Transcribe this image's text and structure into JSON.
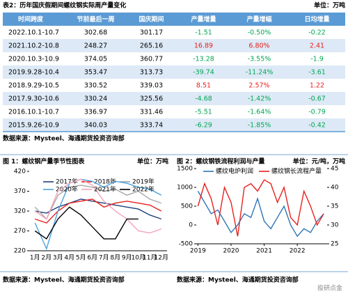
{
  "table": {
    "title": "表2：历年国庆假期间螺纹钢实际周产量变化",
    "unit": "单位：万吨",
    "header": [
      "时间跨度",
      "节前最后一周",
      "国庆期间",
      "产量增量",
      "产量增幅",
      "日均增量"
    ],
    "rows": [
      [
        "2022.10.1-10.7",
        "302.68",
        "301.17",
        "-1.51",
        "-0.50%",
        "-0.22"
      ],
      [
        "2021.10.2-10.8",
        "248.27",
        "265.16",
        "16.89",
        "6.80%",
        "2.41"
      ],
      [
        "2020.10.3-10.9",
        "374.05",
        "360.77",
        "-13.28",
        "-3.55%",
        "-1.9"
      ],
      [
        "2019.9.28-10.4",
        "353.47",
        "313.73",
        "-39.74",
        "-11.24%",
        "-3.61"
      ],
      [
        "2018.9.29-10.5",
        "330.52",
        "339.03",
        "8.51",
        "2.57%",
        "1.22"
      ],
      [
        "2017.9.30-10.6",
        "330.24",
        "325.56",
        "-4.68",
        "-1.42%",
        "-0.67"
      ],
      [
        "2016.10.1-10.7",
        "336.97",
        "331.46",
        "-5.51",
        "-1.64%",
        "-0.79"
      ],
      [
        "2015.9.26-10.9",
        "340.03",
        "333.74",
        "-6.29",
        "-1.85%",
        "-0.42"
      ]
    ],
    "source": "数据来源：Mysteel、海通期货投资咨询部"
  },
  "figure1": {
    "type": "line",
    "title": "图 1：螺纹钢产量季节性图表",
    "unit": "单位：万吨",
    "categories": [
      "1月",
      "2月",
      "3月",
      "4月",
      "5月",
      "6月",
      "7月",
      "8月",
      "9月",
      "10月",
      "11月",
      "12月"
    ],
    "ylim": [
      220,
      420
    ],
    "yticks": [
      220,
      270,
      320,
      370,
      420
    ],
    "series": [
      {
        "name": "2017年",
        "color": "#1f3f7a",
        "values": [
          320,
          315,
          330,
          340,
          350,
          345,
          340,
          335,
          330,
          325,
          310,
          300
        ]
      },
      {
        "name": "2018年",
        "color": "#e8201c",
        "values": [
          300,
          290,
          320,
          340,
          345,
          350,
          330,
          340,
          345,
          340,
          335,
          320
        ]
      },
      {
        "name": "2019年",
        "color": "#a6a6a6",
        "values": [
          330,
          300,
          360,
          380,
          385,
          380,
          370,
          375,
          360,
          370,
          350,
          340
        ]
      },
      {
        "name": "2020年",
        "color": "#4aa3df",
        "values": [
          290,
          225,
          320,
          390,
          400,
          395,
          380,
          395,
          390,
          380,
          375,
          360
        ]
      },
      {
        "name": "2021年",
        "color": "#f4a3b8",
        "values": [
          320,
          300,
          370,
          390,
          400,
          385,
          345,
          320,
          300,
          270,
          265,
          275
        ]
      },
      {
        "name": "2022年",
        "color": "#000000",
        "values": [
          270,
          250,
          300,
          330,
          310,
          280,
          250,
          250,
          300,
          300,
          null,
          null
        ]
      }
    ],
    "source": "数据来源：Mysteel、海通期货投资咨询部"
  },
  "figure2": {
    "type": "line",
    "title": "图 2：螺纹钢铁流程利润与产量",
    "unit": "单位：元/吨，万吨",
    "x": [
      2019.0,
      2019.2,
      2019.4,
      2019.6,
      2019.8,
      2020.0,
      2020.2,
      2020.4,
      2020.6,
      2020.8,
      2021.0,
      2021.2,
      2021.4,
      2021.6,
      2021.8,
      2022.0,
      2022.2,
      2022.4,
      2022.6,
      2022.8
    ],
    "xlim": [
      2018.95,
      2022.9
    ],
    "xticks": [
      2019,
      2020,
      2021,
      2022
    ],
    "ylim": [
      -500,
      1500
    ],
    "yticks": [
      -500,
      0,
      500,
      1000,
      1500
    ],
    "y2lim": [
      25,
      45
    ],
    "y2ticks": [
      25,
      30,
      35,
      40,
      45
    ],
    "series": [
      {
        "name": "螺纹电炉利润",
        "color": "#2e75b6",
        "values": [
          900,
          600,
          300,
          400,
          100,
          -200,
          0,
          300,
          200,
          700,
          100,
          -100,
          200,
          500,
          0,
          -300,
          -100,
          -200,
          100,
          300
        ]
      },
      {
        "name": "螺纹钢长流程产量",
        "color": "#e8201c",
        "axis": "y2",
        "values": [
          35,
          41,
          37,
          30,
          40,
          36,
          27,
          40,
          41,
          39,
          42,
          41,
          36,
          40,
          32,
          30,
          39,
          35,
          30,
          33
        ]
      }
    ],
    "source": "数据来源：Mysteel、海通期货投资咨询部"
  },
  "watermark": "投研点金"
}
